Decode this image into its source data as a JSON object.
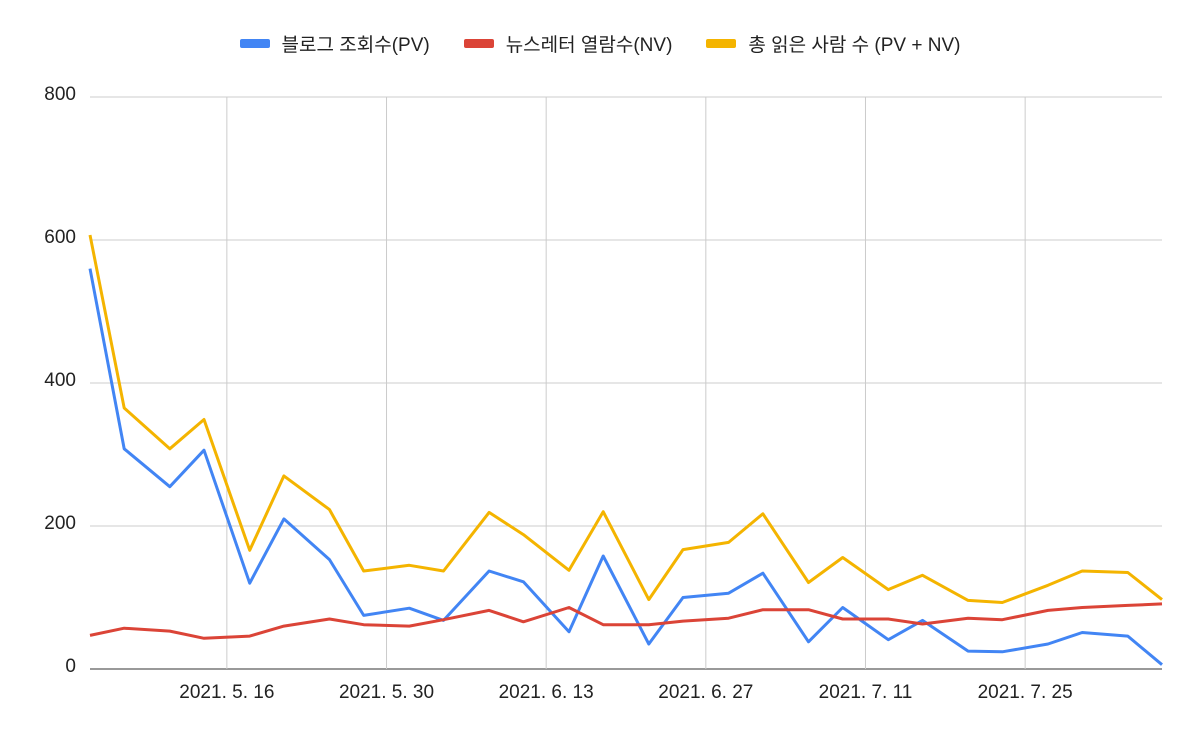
{
  "chart_data": {
    "type": "line",
    "x": [
      "2021-05-04",
      "2021-05-07",
      "2021-05-11",
      "2021-05-14",
      "2021-05-18",
      "2021-05-21",
      "2021-05-25",
      "2021-05-28",
      "2021-06-01",
      "2021-06-04",
      "2021-06-08",
      "2021-06-11",
      "2021-06-15",
      "2021-06-18",
      "2021-06-22",
      "2021-06-25",
      "2021-06-29",
      "2021-07-02",
      "2021-07-06",
      "2021-07-09",
      "2021-07-13",
      "2021-07-16",
      "2021-07-20",
      "2021-07-23",
      "2021-07-27",
      "2021-07-30",
      "2021-08-03",
      "2021-08-06"
    ],
    "series": [
      {
        "name": "블로그 조회수(PV)",
        "color": "#4285f4",
        "values": [
          560,
          308,
          255,
          306,
          120,
          210,
          153,
          75,
          85,
          68,
          137,
          122,
          52,
          158,
          35,
          100,
          106,
          134,
          38,
          86,
          41,
          68,
          25,
          24,
          35,
          51,
          46,
          6
        ]
      },
      {
        "name": "뉴스레터 열람수(NV)",
        "color": "#db4437",
        "values": [
          47,
          57,
          53,
          43,
          46,
          60,
          70,
          62,
          60,
          69,
          82,
          66,
          86,
          62,
          62,
          67,
          71,
          83,
          83,
          70,
          70,
          63,
          71,
          69,
          82,
          86,
          89,
          91
        ]
      },
      {
        "name": "총 읽은 사람 수 (PV + NV)",
        "color": "#f4b400",
        "values": [
          607,
          365,
          308,
          349,
          166,
          270,
          223,
          137,
          145,
          137,
          219,
          188,
          138,
          220,
          97,
          167,
          177,
          217,
          121,
          156,
          111,
          131,
          96,
          93,
          117,
          137,
          135,
          97
        ]
      }
    ],
    "xlim": [
      "2021-05-04",
      "2021-08-06"
    ],
    "xticks": [
      {
        "value": "2021-05-16",
        "label": "2021. 5. 16"
      },
      {
        "value": "2021-05-30",
        "label": "2021. 5. 30"
      },
      {
        "value": "2021-06-13",
        "label": "2021. 6. 13"
      },
      {
        "value": "2021-06-27",
        "label": "2021. 6. 27"
      },
      {
        "value": "2021-07-11",
        "label": "2021. 7. 11"
      },
      {
        "value": "2021-07-25",
        "label": "2021. 7. 25"
      }
    ],
    "ylim": [
      0,
      800
    ],
    "yticks": [
      0,
      200,
      400,
      600,
      800
    ],
    "grid": true,
    "legend": "top"
  }
}
